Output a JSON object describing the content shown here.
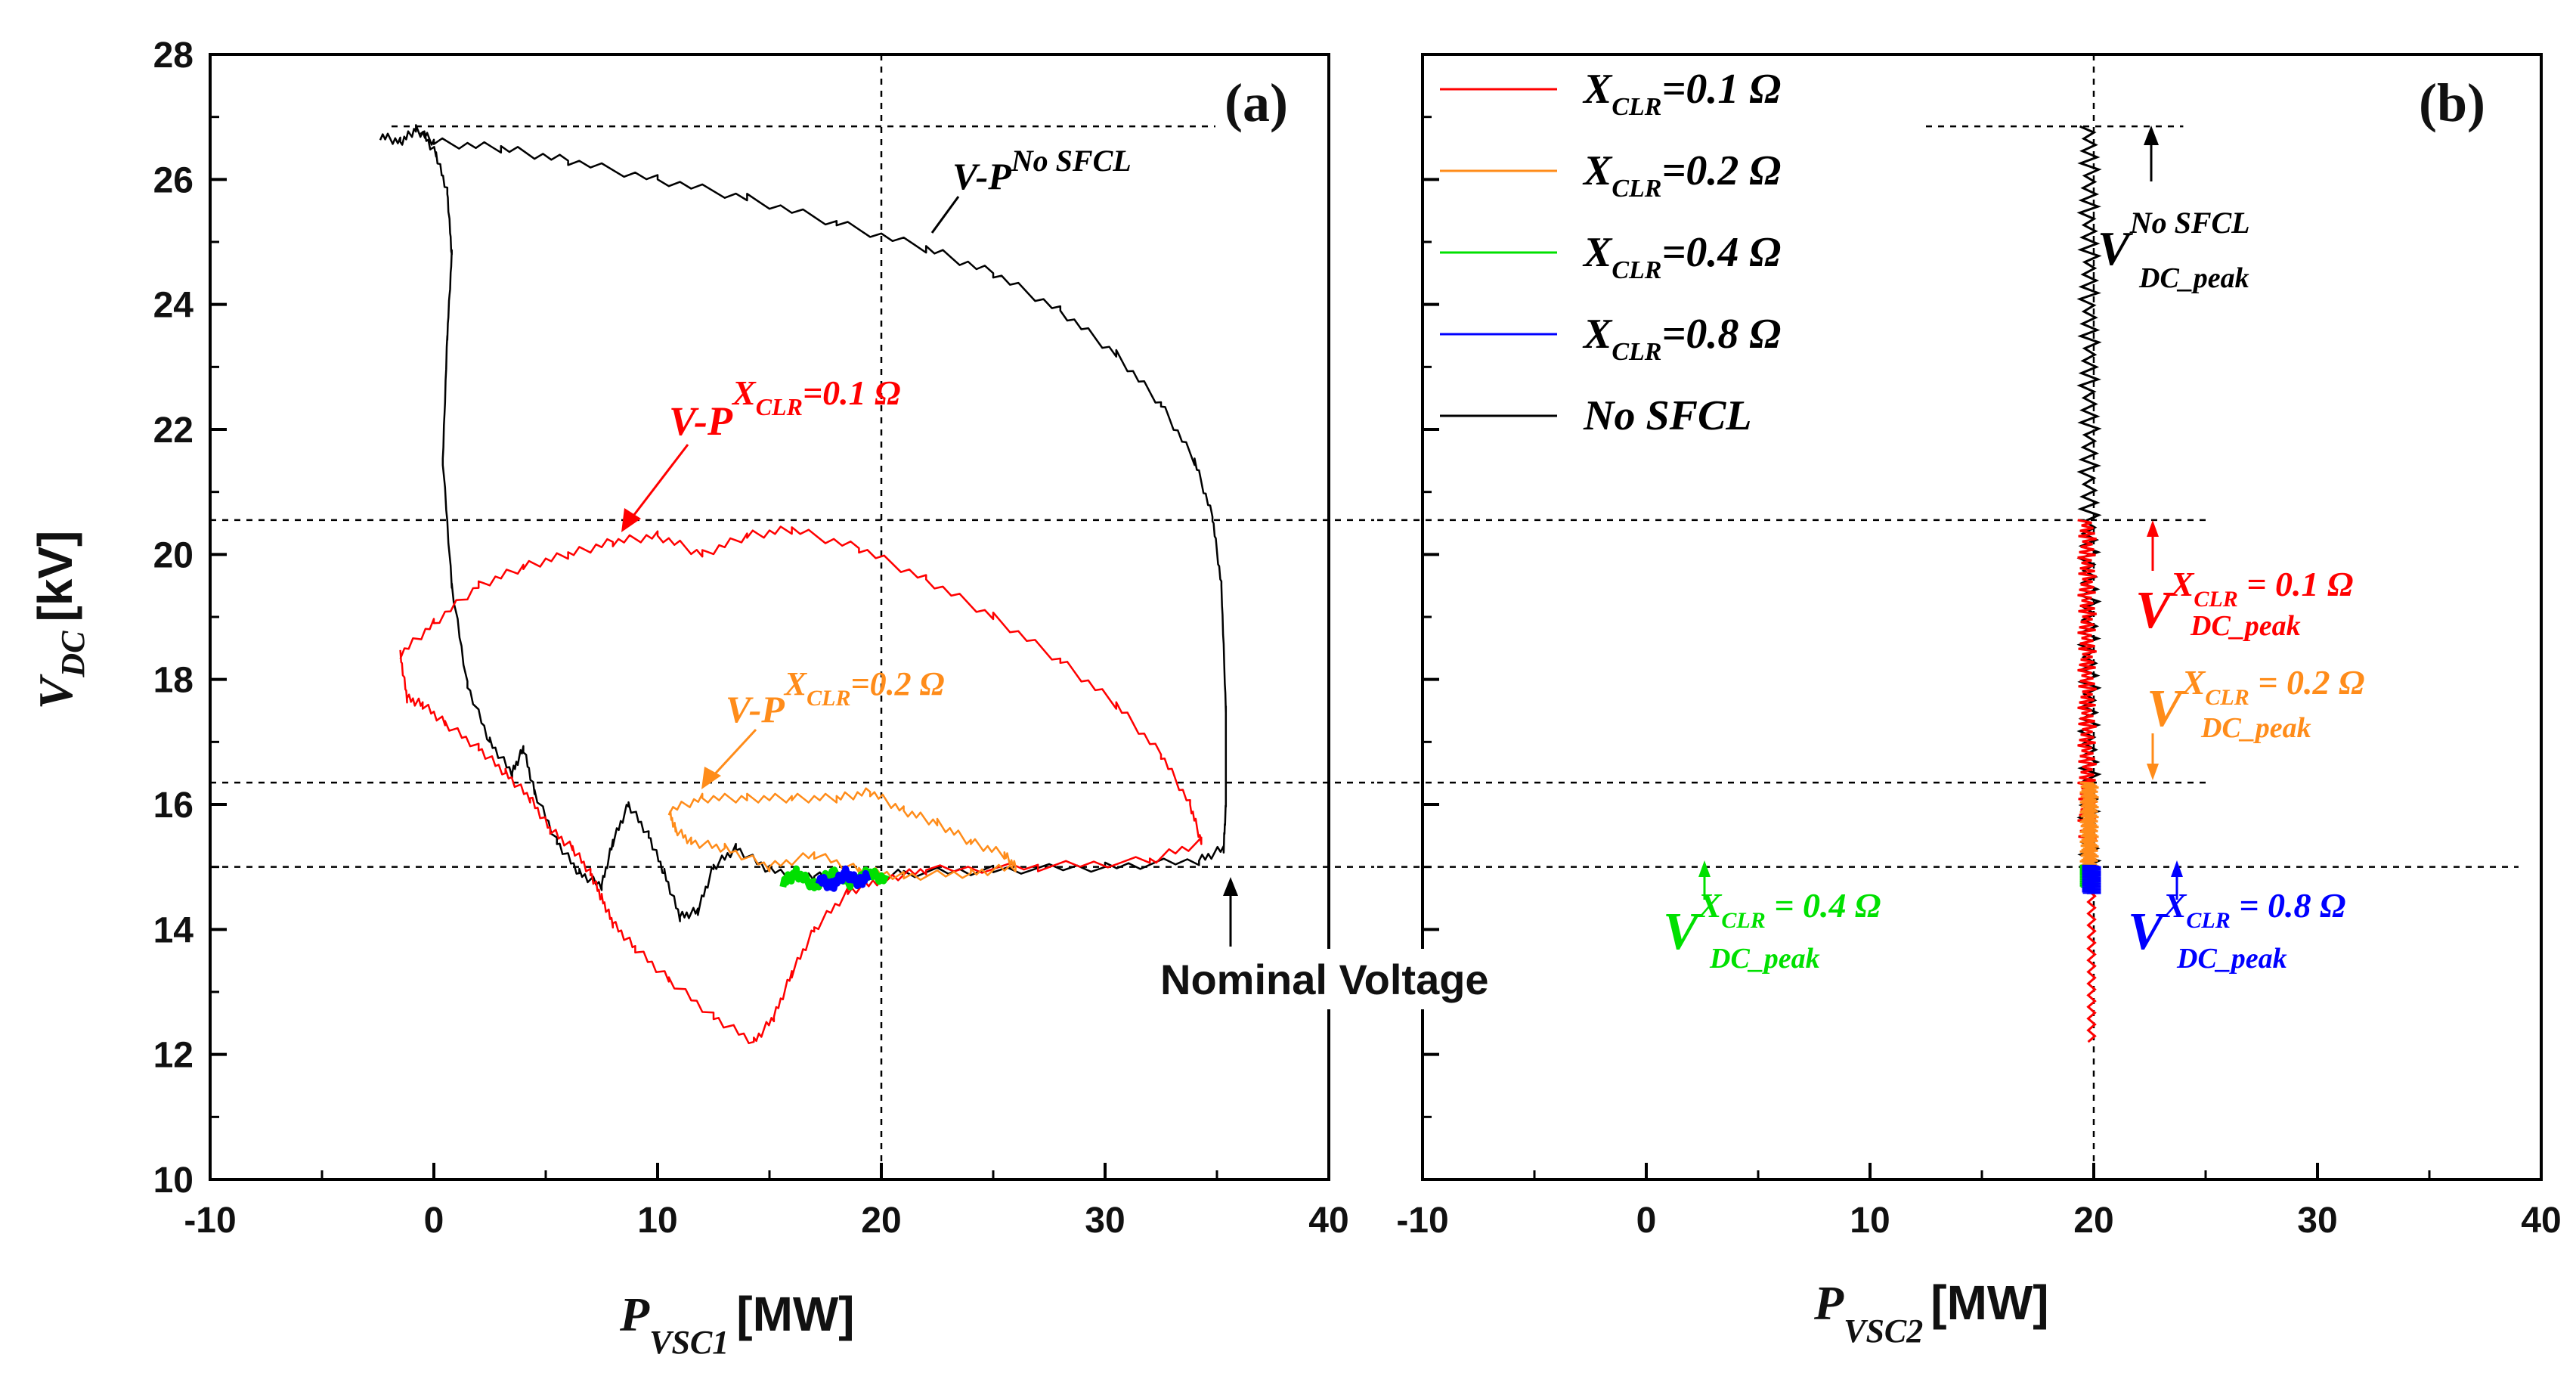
{
  "chart_data": [
    {
      "panel_label": "(a)",
      "type": "line",
      "xlabel": "P",
      "xlabel_sub": "VSC1",
      "xlabel_unit": "[MW]",
      "ylabel": "V",
      "ylabel_sub": "DC",
      "ylabel_unit": "[kV]",
      "xlim": [
        -10,
        40
      ],
      "ylim": [
        10,
        28
      ],
      "xticks": [
        "-10",
        "0",
        "10",
        "20",
        "30",
        "40"
      ],
      "yticks": [
        "10",
        "12",
        "14",
        "16",
        "18",
        "20",
        "22",
        "24",
        "26",
        "28"
      ],
      "reference_lines": {
        "vertical_x": 20,
        "horizontal_y": [
          26.85,
          20.55,
          16.35,
          15.0
        ]
      },
      "series": [
        {
          "name": "No SFCL",
          "color": "#000000",
          "points": [
            [
              -2.4,
              26.7
            ],
            [
              -1.5,
              26.6
            ],
            [
              -0.8,
              26.8
            ],
            [
              0,
              26.6
            ],
            [
              3,
              26.5
            ],
            [
              6,
              26.3
            ],
            [
              10,
              26.0
            ],
            [
              14,
              25.7
            ],
            [
              18,
              25.3
            ],
            [
              22,
              24.9
            ],
            [
              25,
              24.5
            ],
            [
              28,
              23.9
            ],
            [
              30.5,
              23.2
            ],
            [
              32.5,
              22.4
            ],
            [
              34,
              21.5
            ],
            [
              34.8,
              20.6
            ],
            [
              35.2,
              19.5
            ],
            [
              35.4,
              17.5
            ],
            [
              35.4,
              16.0
            ],
            [
              35.3,
              15.3
            ],
            [
              34.2,
              15.1
            ],
            [
              30,
              15.0
            ],
            [
              25,
              14.95
            ],
            [
              21,
              14.9
            ],
            [
              19,
              14.8
            ],
            [
              17,
              14.85
            ],
            [
              15,
              14.95
            ],
            [
              13.5,
              15.3
            ],
            [
              12.5,
              15.0
            ],
            [
              11.8,
              14.3
            ],
            [
              11,
              14.2
            ],
            [
              10.3,
              14.9
            ],
            [
              9.6,
              15.5
            ],
            [
              8.7,
              16.0
            ],
            [
              8,
              15.4
            ],
            [
              7.5,
              14.7
            ],
            [
              6.5,
              14.9
            ],
            [
              5.5,
              15.4
            ],
            [
              4.5,
              16.2
            ],
            [
              4,
              16.9
            ],
            [
              3.5,
              16.5
            ],
            [
              2.5,
              17.0
            ],
            [
              1.5,
              17.9
            ],
            [
              0.8,
              19.5
            ],
            [
              0.4,
              21.5
            ],
            [
              0.6,
              23.5
            ],
            [
              0.8,
              24.8
            ],
            [
              0.6,
              25.8
            ],
            [
              0.1,
              26.4
            ],
            [
              -0.6,
              26.8
            ]
          ]
        },
        {
          "name": "X_CLR=0.1 Ω",
          "color": "#ff0000",
          "points": [
            [
              -1.5,
              18.4
            ],
            [
              0,
              18.9
            ],
            [
              2,
              19.5
            ],
            [
              4,
              19.8
            ],
            [
              6,
              20.0
            ],
            [
              8,
              20.2
            ],
            [
              10,
              20.3
            ],
            [
              12,
              20.0
            ],
            [
              14,
              20.3
            ],
            [
              16,
              20.4
            ],
            [
              19,
              20.1
            ],
            [
              22,
              19.6
            ],
            [
              25,
              19.0
            ],
            [
              28,
              18.3
            ],
            [
              30.5,
              17.6
            ],
            [
              32.5,
              16.8
            ],
            [
              33.8,
              16.0
            ],
            [
              34.3,
              15.4
            ],
            [
              32,
              15.1
            ],
            [
              27,
              15.0
            ],
            [
              22,
              14.95
            ],
            [
              20,
              14.8
            ],
            [
              18.5,
              14.6
            ],
            [
              17,
              14.0
            ],
            [
              16,
              13.3
            ],
            [
              15.2,
              12.6
            ],
            [
              14.3,
              12.2
            ],
            [
              12.5,
              12.6
            ],
            [
              10.5,
              13.2
            ],
            [
              9,
              13.7
            ],
            [
              8,
              14.1
            ],
            [
              7.5,
              14.5
            ],
            [
              7,
              14.9
            ],
            [
              6.2,
              15.3
            ],
            [
              5.2,
              15.6
            ],
            [
              4.3,
              16.1
            ],
            [
              3.2,
              16.5
            ],
            [
              2,
              16.9
            ],
            [
              0.5,
              17.3
            ],
            [
              -0.5,
              17.6
            ],
            [
              -1.2,
              17.7
            ],
            [
              -1.5,
              18.4
            ]
          ]
        },
        {
          "name": "X_CLR=0.2 Ω",
          "color": "#ff8c1a",
          "points": [
            [
              10.5,
              15.9
            ],
            [
              12,
              16.1
            ],
            [
              14,
              16.1
            ],
            [
              16,
              16.1
            ],
            [
              18,
              16.1
            ],
            [
              19.5,
              16.2
            ],
            [
              21,
              15.9
            ],
            [
              22.5,
              15.7
            ],
            [
              24,
              15.4
            ],
            [
              25.5,
              15.2
            ],
            [
              26,
              15.0
            ],
            [
              24,
              14.9
            ],
            [
              21,
              14.85
            ],
            [
              19,
              14.95
            ],
            [
              17,
              15.2
            ],
            [
              15,
              15.0
            ],
            [
              13,
              15.3
            ],
            [
              11.5,
              15.4
            ],
            [
              10.8,
              15.6
            ],
            [
              10.5,
              15.9
            ]
          ]
        },
        {
          "name": "X_CLR=0.4 Ω",
          "color": "#00e000",
          "points": [
            [
              15.6,
              14.75
            ],
            [
              16.2,
              14.9
            ],
            [
              17,
              14.7
            ],
            [
              17.8,
              14.9
            ],
            [
              18.6,
              14.75
            ],
            [
              19.4,
              14.9
            ],
            [
              20.2,
              14.8
            ]
          ]
        },
        {
          "name": "X_CLR=0.8 Ω",
          "color": "#0000ff",
          "points": [
            [
              17.2,
              14.8
            ],
            [
              17.8,
              14.7
            ],
            [
              18.4,
              14.9
            ],
            [
              19.0,
              14.75
            ],
            [
              19.4,
              14.85
            ]
          ]
        }
      ],
      "annotations": [
        {
          "base": "V-P",
          "sup": "No SFCL",
          "color": "#000000"
        },
        {
          "base": "V-P",
          "sup": "X",
          "sup_sub": "CLR",
          "sup_tail": "=0.1 Ω",
          "color": "#ff0000"
        },
        {
          "base": "V-P",
          "sup": "X",
          "sup_sub": "CLR",
          "sup_tail": "=0.2 Ω",
          "color": "#ff8c1a"
        }
      ],
      "nominal_label": "Nominal Voltage"
    },
    {
      "panel_label": "(b)",
      "type": "line",
      "xlabel": "P",
      "xlabel_sub": "VSC2",
      "xlabel_unit": "[MW]",
      "xlim": [
        -10,
        40
      ],
      "ylim": [
        10,
        28
      ],
      "xticks": [
        "-10",
        "0",
        "10",
        "20",
        "30",
        "40"
      ],
      "reference_lines": {
        "vertical_x": 20,
        "horizontal_y": [
          26.85,
          20.55,
          16.35,
          15.0
        ]
      },
      "series": [
        {
          "name": "No SFCL",
          "color": "#000000",
          "x_center": 19.8,
          "y_range": [
            15.0,
            26.85
          ]
        },
        {
          "name": "X_CLR=0.1 Ω",
          "color": "#ff0000",
          "x_center": 19.7,
          "y_range": [
            15.4,
            20.55
          ],
          "tail_range": [
            12.2,
            15.0
          ]
        },
        {
          "name": "X_CLR=0.2 Ω",
          "color": "#ff8c1a",
          "x_center": 19.8,
          "y_range": [
            15.0,
            16.35
          ]
        },
        {
          "name": "X_CLR=0.4 Ω",
          "color": "#00e000",
          "x_center": 19.8,
          "y_range": [
            14.7,
            15.0
          ]
        },
        {
          "name": "X_CLR=0.8 Ω",
          "color": "#0000ff",
          "x_center": 19.9,
          "y_range": [
            14.6,
            15.0
          ]
        }
      ],
      "legend": [
        {
          "label": "X",
          "sub": "CLR",
          "tail": "=0.1 Ω",
          "color": "#ff0000"
        },
        {
          "label": "X",
          "sub": "CLR",
          "tail": "=0.2 Ω",
          "color": "#ff8c1a"
        },
        {
          "label": "X",
          "sub": "CLR",
          "tail": "=0.4 Ω",
          "color": "#00e000"
        },
        {
          "label": "X",
          "sub": "CLR",
          "tail": "=0.8 Ω",
          "color": "#0000ff"
        },
        {
          "label": "No SFCL",
          "sub": "",
          "tail": "",
          "color": "#000000"
        }
      ],
      "annotations": [
        {
          "base": "V",
          "sup": "No SFCL",
          "sub": "DC_peak",
          "color": "#000000"
        },
        {
          "base": "V",
          "sup": "X",
          "sup_sub": "CLR",
          "sup_tail": " = 0.1 Ω",
          "sub": "DC_peak",
          "color": "#ff0000"
        },
        {
          "base": "V",
          "sup": "X",
          "sup_sub": "CLR",
          "sup_tail": " = 0.2 Ω",
          "sub": "DC_peak",
          "color": "#ff8c1a"
        },
        {
          "base": "V",
          "sup": "X",
          "sup_sub": "CLR",
          "sup_tail": " = 0.4 Ω",
          "sub": "DC_peak",
          "color": "#00e000"
        },
        {
          "base": "V",
          "sup": "X",
          "sup_sub": "CLR",
          "sup_tail": " = 0.8 Ω",
          "sub": "DC_peak",
          "color": "#0000ff"
        }
      ]
    }
  ]
}
